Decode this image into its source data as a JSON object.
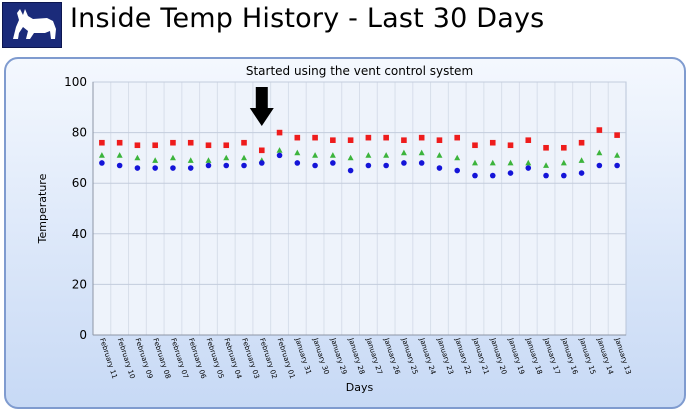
{
  "header": {
    "title": "Inside Temp History - Last 30 Days",
    "logo_icon": "dog-silhouette-icon"
  },
  "chart_data": {
    "type": "scatter",
    "title": "Started using the vent control system",
    "xlabel": "Days",
    "ylabel": "Temperature",
    "ylim": [
      0,
      100
    ],
    "yticks": [
      0,
      20,
      40,
      60,
      80,
      100
    ],
    "grid": true,
    "legend": "none",
    "categories": [
      "February 11",
      "February 10",
      "February 09",
      "February 08",
      "February 07",
      "February 06",
      "February 05",
      "February 04",
      "February 03",
      "February 02",
      "February 01",
      "January 31",
      "January 30",
      "January 29",
      "January 28",
      "January 27",
      "January 26",
      "January 25",
      "January 24",
      "January 23",
      "January 22",
      "January 21",
      "January 20",
      "January 19",
      "January 18",
      "January 17",
      "January 16",
      "January 15",
      "January 14",
      "January 13"
    ],
    "series": [
      {
        "marker": "square",
        "color": "#ee1c1c",
        "values": [
          76,
          76,
          75,
          75,
          76,
          76,
          75,
          75,
          76,
          73,
          80,
          78,
          78,
          77,
          77,
          78,
          78,
          77,
          78,
          77,
          78,
          75,
          76,
          75,
          77,
          74,
          74,
          76,
          81,
          79
        ]
      },
      {
        "marker": "triangle",
        "color": "#3cb43c",
        "values": [
          71,
          71,
          70,
          69,
          70,
          69,
          69,
          70,
          70,
          69,
          73,
          72,
          71,
          71,
          70,
          71,
          71,
          72,
          72,
          71,
          70,
          68,
          68,
          68,
          68,
          67,
          68,
          69,
          72,
          71
        ]
      },
      {
        "marker": "circle",
        "color": "#1414d8",
        "values": [
          68,
          67,
          66,
          66,
          66,
          66,
          67,
          67,
          67,
          68,
          71,
          68,
          67,
          68,
          65,
          67,
          67,
          68,
          68,
          66,
          65,
          63,
          63,
          64,
          66,
          63,
          63,
          64,
          67,
          67
        ]
      }
    ],
    "annotation": {
      "type": "down-arrow",
      "category_index": 9,
      "color": "#000000"
    }
  }
}
